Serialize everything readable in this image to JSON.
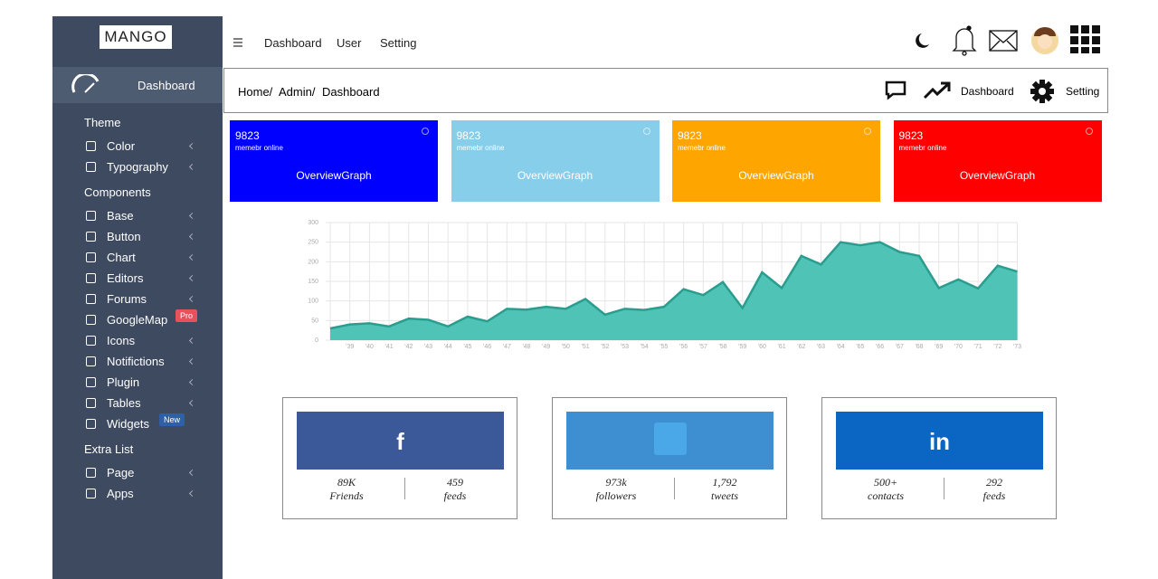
{
  "brand": "MANGO",
  "sidebar": {
    "active": "Dashboard",
    "sections": [
      {
        "title": "Theme",
        "items": [
          {
            "label": "Color"
          },
          {
            "label": "Typography"
          }
        ]
      },
      {
        "title": "Components",
        "items": [
          {
            "label": "Base"
          },
          {
            "label": "Button"
          },
          {
            "label": "Chart"
          },
          {
            "label": "Editors"
          },
          {
            "label": "Forums"
          },
          {
            "label": "GoogleMap",
            "badge": "Pro",
            "badge_color": "#e8505b"
          },
          {
            "label": "Icons"
          },
          {
            "label": "Notifictions"
          },
          {
            "label": "Plugin"
          },
          {
            "label": "Tables"
          },
          {
            "label": "Widgets",
            "badge": "New",
            "badge_color": "#2e5fa8"
          }
        ]
      },
      {
        "title": "Extra List",
        "items": [
          {
            "label": "Page"
          },
          {
            "label": "Apps"
          }
        ]
      }
    ]
  },
  "topnav": [
    "Dashboard",
    "User",
    "Setting"
  ],
  "breadcrumb": [
    "Home/",
    "Admin/",
    "Dashboard"
  ],
  "actions": [
    "Dashboard",
    "Setting"
  ],
  "cards": [
    {
      "value": "9823",
      "subtitle": "memebr online",
      "link": "OverviewGraph",
      "color": "#0000ff"
    },
    {
      "value": "9823",
      "subtitle": "memebr online",
      "link": "OverviewGraph",
      "color": "#87ceeb"
    },
    {
      "value": "9823",
      "subtitle": "memebr online",
      "link": "OverviewGraph",
      "color": "#ffa500"
    },
    {
      "value": "9823",
      "subtitle": "memebr online",
      "link": "OverviewGraph",
      "color": "#ff0000"
    }
  ],
  "chart_data": {
    "type": "area",
    "color": "#4fc3b5",
    "line_color": "#2a9d8f",
    "grid": true,
    "categories": [
      null,
      "'39",
      "'40",
      "'41",
      "'42",
      "'43",
      "'44",
      "'45",
      "'46",
      "'47",
      "'48",
      "'49",
      "'50",
      "'51",
      "'52",
      "'53",
      "'54",
      "'55",
      "'56",
      "'57",
      "'58",
      "'59",
      "'60",
      "'61",
      "'62",
      "'63",
      "'64",
      "'65",
      "'66",
      "'67",
      "'68",
      "'69",
      "'70",
      "'71",
      "'72",
      "'73"
    ],
    "values": [
      30,
      40,
      43,
      35,
      55,
      52,
      35,
      60,
      48,
      80,
      78,
      85,
      80,
      105,
      65,
      80,
      77,
      85,
      130,
      115,
      148,
      82,
      173,
      133,
      215,
      193,
      250,
      242,
      250,
      225,
      215,
      133,
      155,
      132,
      190,
      175
    ],
    "ylim": [
      0,
      300
    ],
    "yticks": [
      0,
      50,
      100,
      150,
      200,
      250,
      300
    ]
  },
  "social": [
    {
      "color": "#3b5998",
      "logo": "f",
      "stats": [
        {
          "value": "89K",
          "label": "Friends"
        },
        {
          "value": "459",
          "label": "feeds"
        }
      ]
    },
    {
      "color": "#3d8fd1",
      "stats": [
        {
          "value": "973k",
          "label": "followers"
        },
        {
          "value": "1,792",
          "label": "tweets"
        }
      ]
    },
    {
      "color": "#0a66c2",
      "logo": "in",
      "stats": [
        {
          "value": "500+",
          "label": "contacts"
        },
        {
          "value": "292",
          "label": "feeds"
        }
      ]
    }
  ]
}
